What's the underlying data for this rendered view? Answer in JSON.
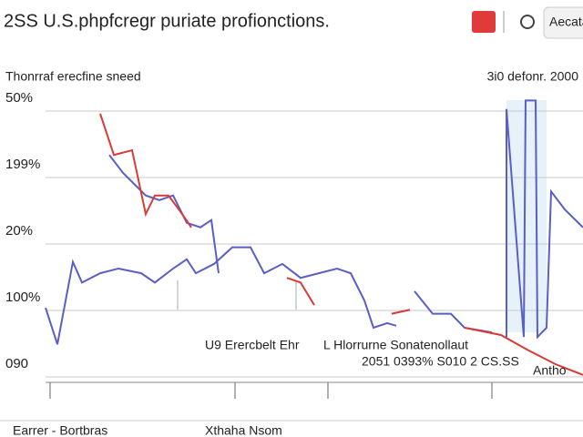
{
  "chart_data": {
    "type": "line",
    "title": "2SS U.S.phpfcregr puriate profionctions.",
    "subtitle": "Thonrraf erecfine sneed",
    "corner_note": "3i0 defonr. 2000",
    "button": "Aecata",
    "annotations": [
      "U9 Erercbelt Ehr",
      "L Hlorrurne Sonatenollaut",
      "2051 0393% S010 2 CS.SS",
      "Antho"
    ],
    "footer": [
      "Earrer - Bortbras",
      "Xthaha Nsom"
    ],
    "xlim": [
      0,
      590
    ],
    "ylim": [
      0,
      4.4
    ],
    "yticks": [
      {
        "value": 0,
        "label": "090"
      },
      {
        "value": 1,
        "label": "100%"
      },
      {
        "value": 2,
        "label": "20%"
      },
      {
        "value": 3,
        "label": "199%"
      },
      {
        "value": 4,
        "label": "50%"
      }
    ],
    "grid": true,
    "series": [
      {
        "color": "#5a5fc4",
        "x": [
          0,
          13,
          30,
          40,
          60,
          80,
          105,
          120,
          140,
          155,
          165,
          185,
          205,
          225,
          240,
          260,
          280,
          300,
          320,
          335,
          350,
          360,
          375,
          385,
          null,
          405,
          425,
          445,
          460,
          490,
          null,
          506,
          506,
          525,
          527,
          538,
          540,
          550,
          555,
          570,
          590,
          null,
          70,
          85,
          110,
          125,
          140,
          155,
          170,
          182,
          190
        ],
        "values": [
          1.04,
          0.49,
          1.73,
          1.42,
          1.56,
          1.63,
          1.56,
          1.42,
          1.63,
          1.77,
          1.56,
          1.7,
          1.95,
          1.95,
          1.56,
          1.7,
          1.49,
          1.56,
          1.63,
          1.56,
          1.15,
          0.74,
          0.81,
          0.77,
          null,
          1.29,
          0.95,
          0.95,
          0.74,
          0.67,
          null,
          0.6,
          4.03,
          0.6,
          4.16,
          4.16,
          0.6,
          0.74,
          2.79,
          2.52,
          2.25,
          null,
          3.34,
          3.07,
          2.73,
          2.66,
          2.73,
          2.32,
          2.25,
          2.36,
          1.56
        ]
      },
      {
        "color": "#d63b35",
        "x": [
          60,
          75,
          95,
          110,
          120,
          135,
          150,
          160,
          null,
          265,
          280,
          295,
          null,
          380,
          400,
          null,
          460,
          500,
          530,
          560,
          590
        ],
        "values": [
          3.96,
          3.34,
          3.41,
          2.45,
          2.73,
          2.73,
          2.45,
          2.25,
          null,
          1.49,
          1.42,
          1.08,
          null,
          0.95,
          1.01,
          null,
          0.74,
          0.63,
          0.4,
          0.19,
          0.03
        ]
      }
    ]
  }
}
